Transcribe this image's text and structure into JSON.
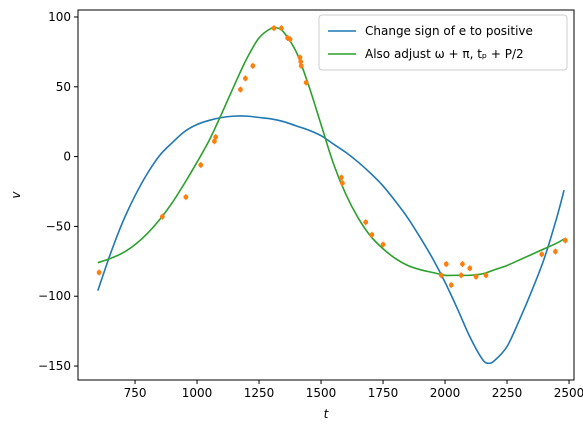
{
  "chart_data": {
    "type": "line",
    "xlabel": "t",
    "ylabel": "v",
    "xlim": [
      520,
      2520
    ],
    "ylim": [
      -160,
      105
    ],
    "xticks": [
      "750",
      "1000",
      "1250",
      "1500",
      "1750",
      "2000",
      "2250",
      "2500"
    ],
    "xtick_values": [
      750,
      1000,
      1250,
      1500,
      1750,
      2000,
      2250,
      2500
    ],
    "yticks": [
      "100",
      "50",
      "0",
      "−50",
      "−100",
      "−150"
    ],
    "ytick_values": [
      100,
      50,
      0,
      -50,
      -100,
      -150
    ],
    "grid": false,
    "legend_location": "upper right",
    "series": [
      {
        "name": "Change sign of e to positive",
        "color": "#1f77b4",
        "kind": "line",
        "x": [
          600,
          650,
          700,
          750,
          800,
          850,
          900,
          950,
          1000,
          1050,
          1100,
          1150,
          1200,
          1250,
          1300,
          1350,
          1400,
          1450,
          1500,
          1550,
          1600,
          1650,
          1700,
          1750,
          1800,
          1850,
          1900,
          1950,
          2000,
          2050,
          2100,
          2150,
          2175,
          2200,
          2250,
          2300,
          2350,
          2400,
          2450,
          2480
        ],
        "y": [
          -96,
          -70,
          -47,
          -28,
          -12,
          1,
          10,
          18,
          23,
          26,
          28,
          29,
          29,
          28,
          27,
          25,
          22,
          19,
          15,
          9,
          3,
          -4,
          -12,
          -21,
          -32,
          -44,
          -58,
          -73,
          -90,
          -109,
          -129,
          -145,
          -148,
          -146,
          -136,
          -117,
          -96,
          -73,
          -44,
          -24
        ]
      },
      {
        "name": "Also adjust ω + π, tₚ + P/2",
        "color": "#2ca02c",
        "kind": "line",
        "x": [
          600,
          650,
          700,
          750,
          800,
          850,
          900,
          950,
          1000,
          1050,
          1100,
          1150,
          1200,
          1250,
          1300,
          1325,
          1350,
          1400,
          1450,
          1500,
          1550,
          1600,
          1650,
          1700,
          1750,
          1800,
          1850,
          1900,
          1950,
          2000,
          2050,
          2100,
          2150,
          2200,
          2250,
          2300,
          2350,
          2400,
          2450,
          2480
        ],
        "y": [
          -76,
          -73,
          -69,
          -63,
          -55,
          -45,
          -33,
          -19,
          -4,
          12,
          31,
          51,
          70,
          85,
          92,
          92,
          89,
          75,
          51,
          23,
          -5,
          -27,
          -44,
          -57,
          -66,
          -73,
          -78,
          -81,
          -83,
          -85,
          -85,
          -85,
          -84,
          -81,
          -78,
          -74,
          -70,
          -66,
          -62,
          -59
        ]
      },
      {
        "name": "",
        "color": "#ff7f0e",
        "kind": "scatter",
        "x": [
          605,
          860,
          955,
          1015,
          1070,
          1075,
          1175,
          1195,
          1225,
          1310,
          1340,
          1365,
          1375,
          1415,
          1418,
          1420,
          1440,
          1582,
          1586,
          1680,
          1705,
          1750,
          1985,
          2005,
          2025,
          2065,
          2070,
          2100,
          2125,
          2165,
          2390,
          2445,
          2485
        ],
        "y": [
          -83,
          -43,
          -29,
          -6,
          11,
          14,
          48,
          56,
          65,
          92,
          92,
          85,
          84,
          71,
          68,
          65,
          53,
          -15,
          -19,
          -47,
          -56,
          -63,
          -85,
          -77,
          -92,
          -85,
          -77,
          -80,
          -86,
          -85,
          -70,
          -68,
          -60
        ]
      }
    ]
  }
}
